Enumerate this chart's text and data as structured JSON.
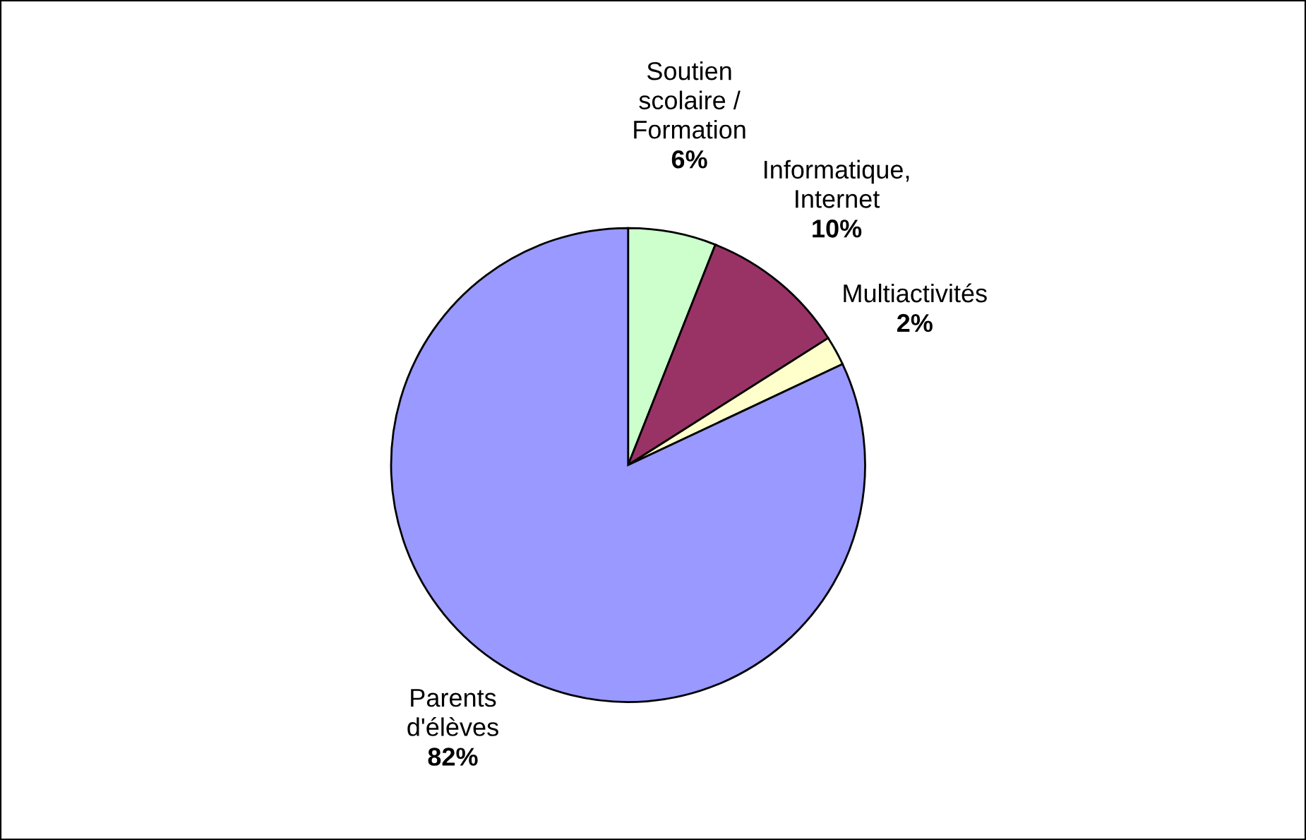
{
  "chart_data": {
    "type": "pie",
    "categories": [
      "Soutien\nscolaire /\nFormation",
      "Informatique,\nInternet",
      "Multiactivités",
      "Parents\nd'élèves"
    ],
    "values": [
      6,
      10,
      2,
      82
    ],
    "colors": [
      "#ccffcc",
      "#993366",
      "#ffffcc",
      "#9999ff"
    ],
    "value_labels": [
      "6%",
      "10%",
      "2%",
      "82%"
    ],
    "legend": false
  }
}
